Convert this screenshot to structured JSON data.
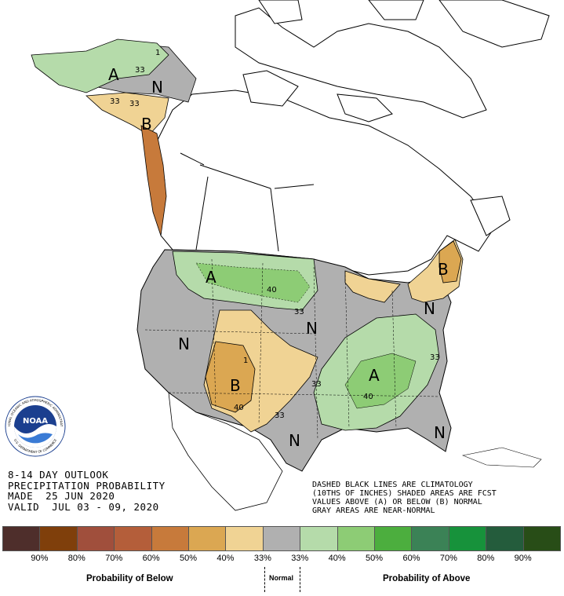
{
  "title": {
    "line1": "8-14 DAY OUTLOOK",
    "line2": "PRECIPITATION PROBABILITY",
    "made": "MADE  25 JUN 2020",
    "valid": "VALID  JUL 03 - 09, 2020"
  },
  "notes": [
    "DASHED BLACK LINES ARE CLIMATOLOGY",
    "(10THS OF INCHES) SHADED AREAS ARE FCST",
    "VALUES ABOVE (A) OR BELOW (B) NORMAL",
    "GRAY AREAS ARE NEAR-NORMAL"
  ],
  "map_labels": {
    "a_alaska": "A",
    "n_alaska": "N",
    "b_alaska": "B",
    "a_north": "A",
    "n_west": "N",
    "b_southwest": "B",
    "n_central": "N",
    "n_northeast": "N",
    "b_northeast": "B",
    "a_southeast": "A",
    "n_texas": "N",
    "n_florida": "N",
    "c33_ak1": "33",
    "c33_ak2": "33",
    "c33_ak3": "33",
    "c40_dakota": "40",
    "c33_plains": "33",
    "c40_sw": "40",
    "c33_texas": "33",
    "c33_mid": "33",
    "c40_se": "40",
    "c33_east": "33",
    "c1_alaska": "1",
    "c1_sw": "1"
  },
  "legend": {
    "colors": [
      "#4e2e2b",
      "#7f3f0b",
      "#a04f3c",
      "#b45e3a",
      "#c77a3b",
      "#dba752",
      "#f0d394",
      "#b0b0b0",
      "#b5dbaa",
      "#8dcc75",
      "#4cae3e",
      "#3b8256",
      "#17923b",
      "#245c3c",
      "#284d17"
    ],
    "labels": [
      "90%",
      "80%",
      "70%",
      "60%",
      "50%",
      "40%",
      "33%",
      "33%",
      "40%",
      "50%",
      "60%",
      "70%",
      "80%",
      "90%"
    ],
    "below_caption": "Probability of Below",
    "normal_caption": "Normal",
    "above_caption": "Probability of Above"
  },
  "logo": {
    "text": "NOAA",
    "ring_top": "NATIONAL OCEANIC AND ATMOSPHERIC ADMINISTRATION",
    "ring_bottom": "U.S. DEPARTMENT OF COMMERCE"
  }
}
